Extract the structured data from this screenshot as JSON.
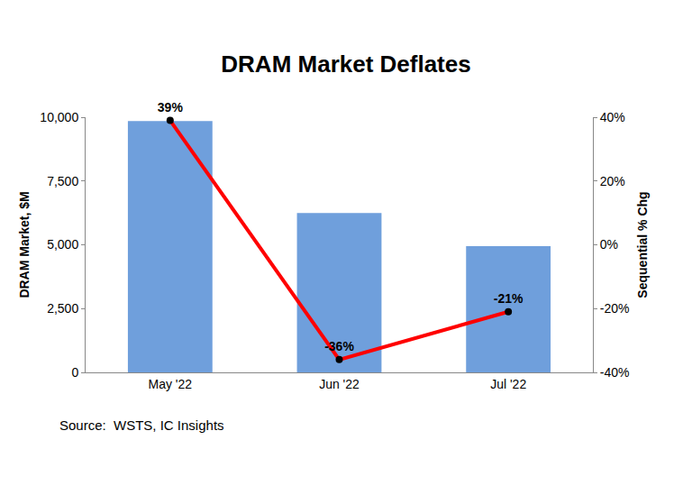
{
  "chart_data": {
    "type": "bar",
    "title": "DRAM Market Deflates",
    "source": "Source:  WSTS, IC Insights",
    "y_label": "DRAM Market, $M",
    "y2_label": "Sequential % Chg",
    "categories": [
      "May '22",
      "Jun '22",
      "Jul '22"
    ],
    "series": [
      {
        "type": "bar",
        "color": "#6f9fdc",
        "values": [
          9850,
          6250,
          4950
        ]
      },
      {
        "type": "line",
        "axis": "y2",
        "color": "#ff0000",
        "marker": "circle",
        "line_style": "solid",
        "data_labels": true,
        "values": [
          39,
          -36,
          -21
        ],
        "value_labels": [
          "39%",
          "-36%",
          "-21%"
        ]
      }
    ],
    "ylim": [
      0,
      10000
    ],
    "yticks": [
      0,
      {
        "value": 2500,
        "label": "2,500"
      },
      {
        "value": 5000,
        "label": "5,000"
      },
      {
        "value": 7500,
        "label": "7,500"
      },
      {
        "value": 10000,
        "label": "10,000"
      }
    ],
    "y2lim": [
      -40,
      40
    ],
    "y2ticks": [
      {
        "value": -40,
        "label": "-40%"
      },
      {
        "value": -20,
        "label": "-20%"
      },
      {
        "value": 0,
        "label": "0%"
      },
      {
        "value": 20,
        "label": "20%"
      },
      {
        "value": 40,
        "label": "40%"
      }
    ],
    "grid": false
  }
}
